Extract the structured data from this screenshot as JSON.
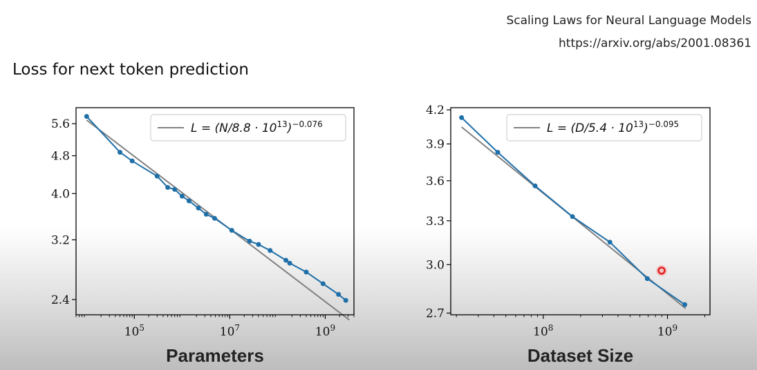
{
  "header": {
    "reference_title": "Scaling Laws for Neural Language Models",
    "reference_url": "https://arxiv.org/abs/2001.08361",
    "slide_title": "Loss for next token prediction"
  },
  "colors": {
    "data_series": "#1f6fa8",
    "fit_line": "#808080",
    "axes": "#000000",
    "cursor_highlight": "#e02020"
  },
  "chart_data": [
    {
      "type": "line",
      "xscale": "log",
      "yscale": "log",
      "xlim": [
        6000,
        4000000000
      ],
      "ylim": [
        2.23,
        6.05
      ],
      "grid": false,
      "xlabel": "Parameters",
      "ylabel": "",
      "x_ticks": [
        100000,
        10000000,
        1000000000
      ],
      "x_tick_labels": [
        {
          "base": "10",
          "exp": "5"
        },
        {
          "base": "10",
          "exp": "7"
        },
        {
          "base": "10",
          "exp": "9"
        }
      ],
      "y_ticks": [
        2.4,
        3.2,
        4.0,
        4.8,
        5.6
      ],
      "y_tick_labels": [
        "2.4",
        "3.2",
        "4.0",
        "4.8",
        "5.6"
      ],
      "legend": {
        "location": "top-right",
        "label_main": "L = (N/8.8 · 10",
        "label_exp1": "13",
        "label_close": ")",
        "label_exp2": "−0.076"
      },
      "fit": {
        "coefficient": 88000000000000.0,
        "exponent": -0.076,
        "x_range": [
          10000,
          3200000000
        ]
      },
      "series": [
        {
          "x": [
            10000,
            50000,
            90000,
            300000,
            500000,
            700000,
            1000000,
            1400000,
            2200000,
            3200000,
            4800000,
            11000000,
            26000000,
            40000000,
            70000000,
            150000000,
            180000000,
            400000000,
            900000000,
            1900000000,
            2700000000
          ],
          "y": [
            5.8,
            4.88,
            4.68,
            4.35,
            4.12,
            4.08,
            3.95,
            3.86,
            3.73,
            3.62,
            3.55,
            3.35,
            3.18,
            3.13,
            3.04,
            2.9,
            2.86,
            2.74,
            2.59,
            2.46,
            2.39
          ]
        }
      ]
    },
    {
      "type": "line",
      "xscale": "log",
      "yscale": "log",
      "xlim": [
        18000000,
        2200000000
      ],
      "ylim": [
        2.69,
        4.22
      ],
      "grid": false,
      "xlabel": "Dataset Size",
      "ylabel": "",
      "x_ticks": [
        100000000,
        1000000000
      ],
      "x_tick_labels": [
        {
          "base": "10",
          "exp": "8"
        },
        {
          "base": "10",
          "exp": "9"
        }
      ],
      "y_ticks": [
        2.7,
        3.0,
        3.3,
        3.6,
        3.9,
        4.2
      ],
      "y_tick_labels": [
        "2.7",
        "3.0",
        "3.3",
        "3.6",
        "3.9",
        "4.2"
      ],
      "legend": {
        "location": "top-right",
        "label_main": "L = (D/5.4 · 10",
        "label_exp1": "13",
        "label_close": ")",
        "label_exp2": "−0.095"
      },
      "fit": {
        "coefficient": 54000000000000.0,
        "exponent": -0.095,
        "x_range": [
          22000000,
          1400000000
        ]
      },
      "series": [
        {
          "x": [
            22000000,
            43000000,
            86000000,
            172000000,
            344000000,
            688000000,
            1380000000
          ],
          "y": [
            4.13,
            3.83,
            3.56,
            3.33,
            3.15,
            2.91,
            2.75
          ]
        }
      ]
    }
  ]
}
